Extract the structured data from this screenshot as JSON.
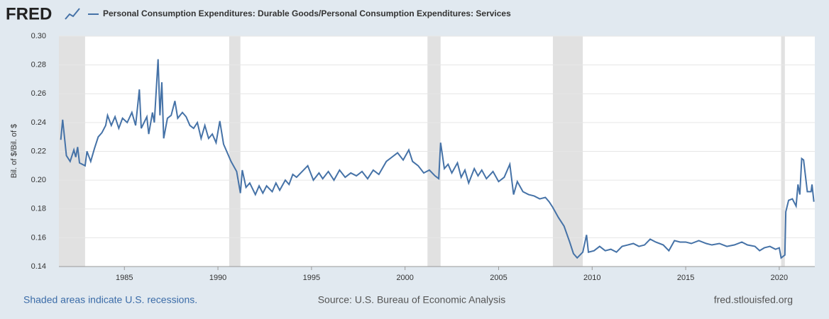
{
  "brand": "FRED",
  "chart_data": {
    "type": "line",
    "y_label": "Bil. of $/Bil. of $",
    "series": [
      {
        "name": "Personal Consumption Expenditures: Durable Goods/Personal Consumption Expenditures: Services",
        "color": "#4572a7",
        "x": [
          1981.6,
          1981.7,
          1981.9,
          1982.1,
          1982.3,
          1982.4,
          1982.5,
          1982.6,
          1982.9,
          1983.0,
          1983.2,
          1983.4,
          1983.6,
          1983.8,
          1984.0,
          1984.1,
          1984.3,
          1984.5,
          1984.7,
          1984.9,
          1985.15,
          1985.4,
          1985.6,
          1985.8,
          1985.9,
          1986.2,
          1986.3,
          1986.5,
          1986.6,
          1986.8,
          1986.9,
          1987.0,
          1987.1,
          1987.3,
          1987.5,
          1987.7,
          1987.85,
          1988.1,
          1988.3,
          1988.5,
          1988.7,
          1988.9,
          1989.1,
          1989.3,
          1989.5,
          1989.7,
          1989.9,
          1990.1,
          1990.3,
          1990.5,
          1990.7,
          1991.0,
          1991.2,
          1991.3,
          1991.5,
          1991.7,
          1992.0,
          1992.2,
          1992.4,
          1992.6,
          1992.9,
          1993.1,
          1993.3,
          1993.6,
          1993.8,
          1994.0,
          1994.2,
          1994.5,
          1994.8,
          1995.1,
          1995.4,
          1995.6,
          1995.9,
          1996.2,
          1996.5,
          1996.8,
          1997.1,
          1997.4,
          1997.7,
          1998.0,
          1998.3,
          1998.6,
          1999.0,
          1999.3,
          1999.6,
          1999.9,
          2000.2,
          2000.4,
          2000.7,
          2001.0,
          2001.3,
          2001.6,
          2001.8,
          2001.9,
          2002.1,
          2002.3,
          2002.5,
          2002.8,
          2003.0,
          2003.2,
          2003.4,
          2003.7,
          2003.9,
          2004.1,
          2004.35,
          2004.7,
          2005.0,
          2005.3,
          2005.6,
          2005.8,
          2006.0,
          2006.3,
          2006.6,
          2006.9,
          2007.2,
          2007.5,
          2007.7,
          2007.9,
          2008.2,
          2008.5,
          2008.8,
          2009.0,
          2009.2,
          2009.5,
          2009.7,
          2009.8,
          2010.1,
          2010.4,
          2010.7,
          2011.0,
          2011.3,
          2011.6,
          2011.9,
          2012.2,
          2012.5,
          2012.8,
          2013.1,
          2013.4,
          2013.8,
          2014.1,
          2014.4,
          2014.7,
          2015.0,
          2015.3,
          2015.7,
          2016.1,
          2016.4,
          2016.8,
          2017.2,
          2017.6,
          2018.0,
          2018.3,
          2018.7,
          2018.95,
          2019.2,
          2019.5,
          2019.8,
          2020.0,
          2020.1,
          2020.3,
          2020.35,
          2020.5,
          2020.7,
          2020.9,
          2021.0,
          2021.1,
          2021.2,
          2021.3,
          2021.4,
          2021.5,
          2021.7,
          2021.75,
          2021.85
        ],
        "values": [
          0.228,
          0.242,
          0.217,
          0.213,
          0.221,
          0.216,
          0.223,
          0.212,
          0.21,
          0.22,
          0.213,
          0.222,
          0.23,
          0.233,
          0.238,
          0.245,
          0.238,
          0.244,
          0.236,
          0.243,
          0.24,
          0.247,
          0.238,
          0.263,
          0.236,
          0.244,
          0.232,
          0.247,
          0.24,
          0.284,
          0.245,
          0.268,
          0.229,
          0.243,
          0.245,
          0.255,
          0.243,
          0.247,
          0.244,
          0.238,
          0.236,
          0.24,
          0.229,
          0.238,
          0.229,
          0.232,
          0.226,
          0.241,
          0.225,
          0.219,
          0.213,
          0.206,
          0.191,
          0.207,
          0.195,
          0.198,
          0.19,
          0.196,
          0.191,
          0.196,
          0.192,
          0.198,
          0.193,
          0.2,
          0.197,
          0.204,
          0.202,
          0.206,
          0.21,
          0.2,
          0.205,
          0.201,
          0.206,
          0.2,
          0.207,
          0.202,
          0.205,
          0.203,
          0.206,
          0.201,
          0.207,
          0.204,
          0.213,
          0.216,
          0.219,
          0.214,
          0.221,
          0.213,
          0.21,
          0.205,
          0.207,
          0.203,
          0.201,
          0.226,
          0.208,
          0.211,
          0.205,
          0.212,
          0.202,
          0.207,
          0.198,
          0.208,
          0.203,
          0.207,
          0.201,
          0.206,
          0.199,
          0.202,
          0.211,
          0.19,
          0.199,
          0.192,
          0.19,
          0.189,
          0.187,
          0.188,
          0.185,
          0.181,
          0.174,
          0.168,
          0.157,
          0.149,
          0.146,
          0.15,
          0.162,
          0.15,
          0.151,
          0.154,
          0.151,
          0.152,
          0.15,
          0.154,
          0.155,
          0.156,
          0.154,
          0.155,
          0.159,
          0.157,
          0.155,
          0.151,
          0.158,
          0.157,
          0.157,
          0.156,
          0.158,
          0.156,
          0.155,
          0.156,
          0.154,
          0.155,
          0.157,
          0.155,
          0.154,
          0.151,
          0.153,
          0.154,
          0.152,
          0.153,
          0.146,
          0.148,
          0.178,
          0.186,
          0.187,
          0.182,
          0.197,
          0.19,
          0.215,
          0.214,
          0.203,
          0.192,
          0.192,
          0.197,
          0.185
        ]
      }
    ],
    "recessions": [
      [
        1981.5,
        1982.9
      ],
      [
        1990.6,
        1991.2
      ],
      [
        2001.2,
        2001.9
      ],
      [
        2007.9,
        2009.5
      ],
      [
        2020.1,
        2020.3
      ]
    ],
    "xlim": [
      1981.5,
      2021.9
    ],
    "xticks": [
      1985,
      1990,
      1995,
      2000,
      2005,
      2010,
      2015,
      2020
    ],
    "ylim": [
      0.14,
      0.3
    ],
    "yticks": [
      0.14,
      0.16,
      0.18,
      {
        "value": 0.2,
        "label": "0.20"
      },
      0.22,
      0.24,
      0.26,
      0.28,
      {
        "value": 0.3,
        "label": "0.30"
      }
    ],
    "grid": true
  },
  "footer": {
    "left": "Shaded areas indicate U.S. recessions.",
    "center": "Source: U.S. Bureau of Economic Analysis",
    "right": "fred.stlouisfed.org"
  }
}
